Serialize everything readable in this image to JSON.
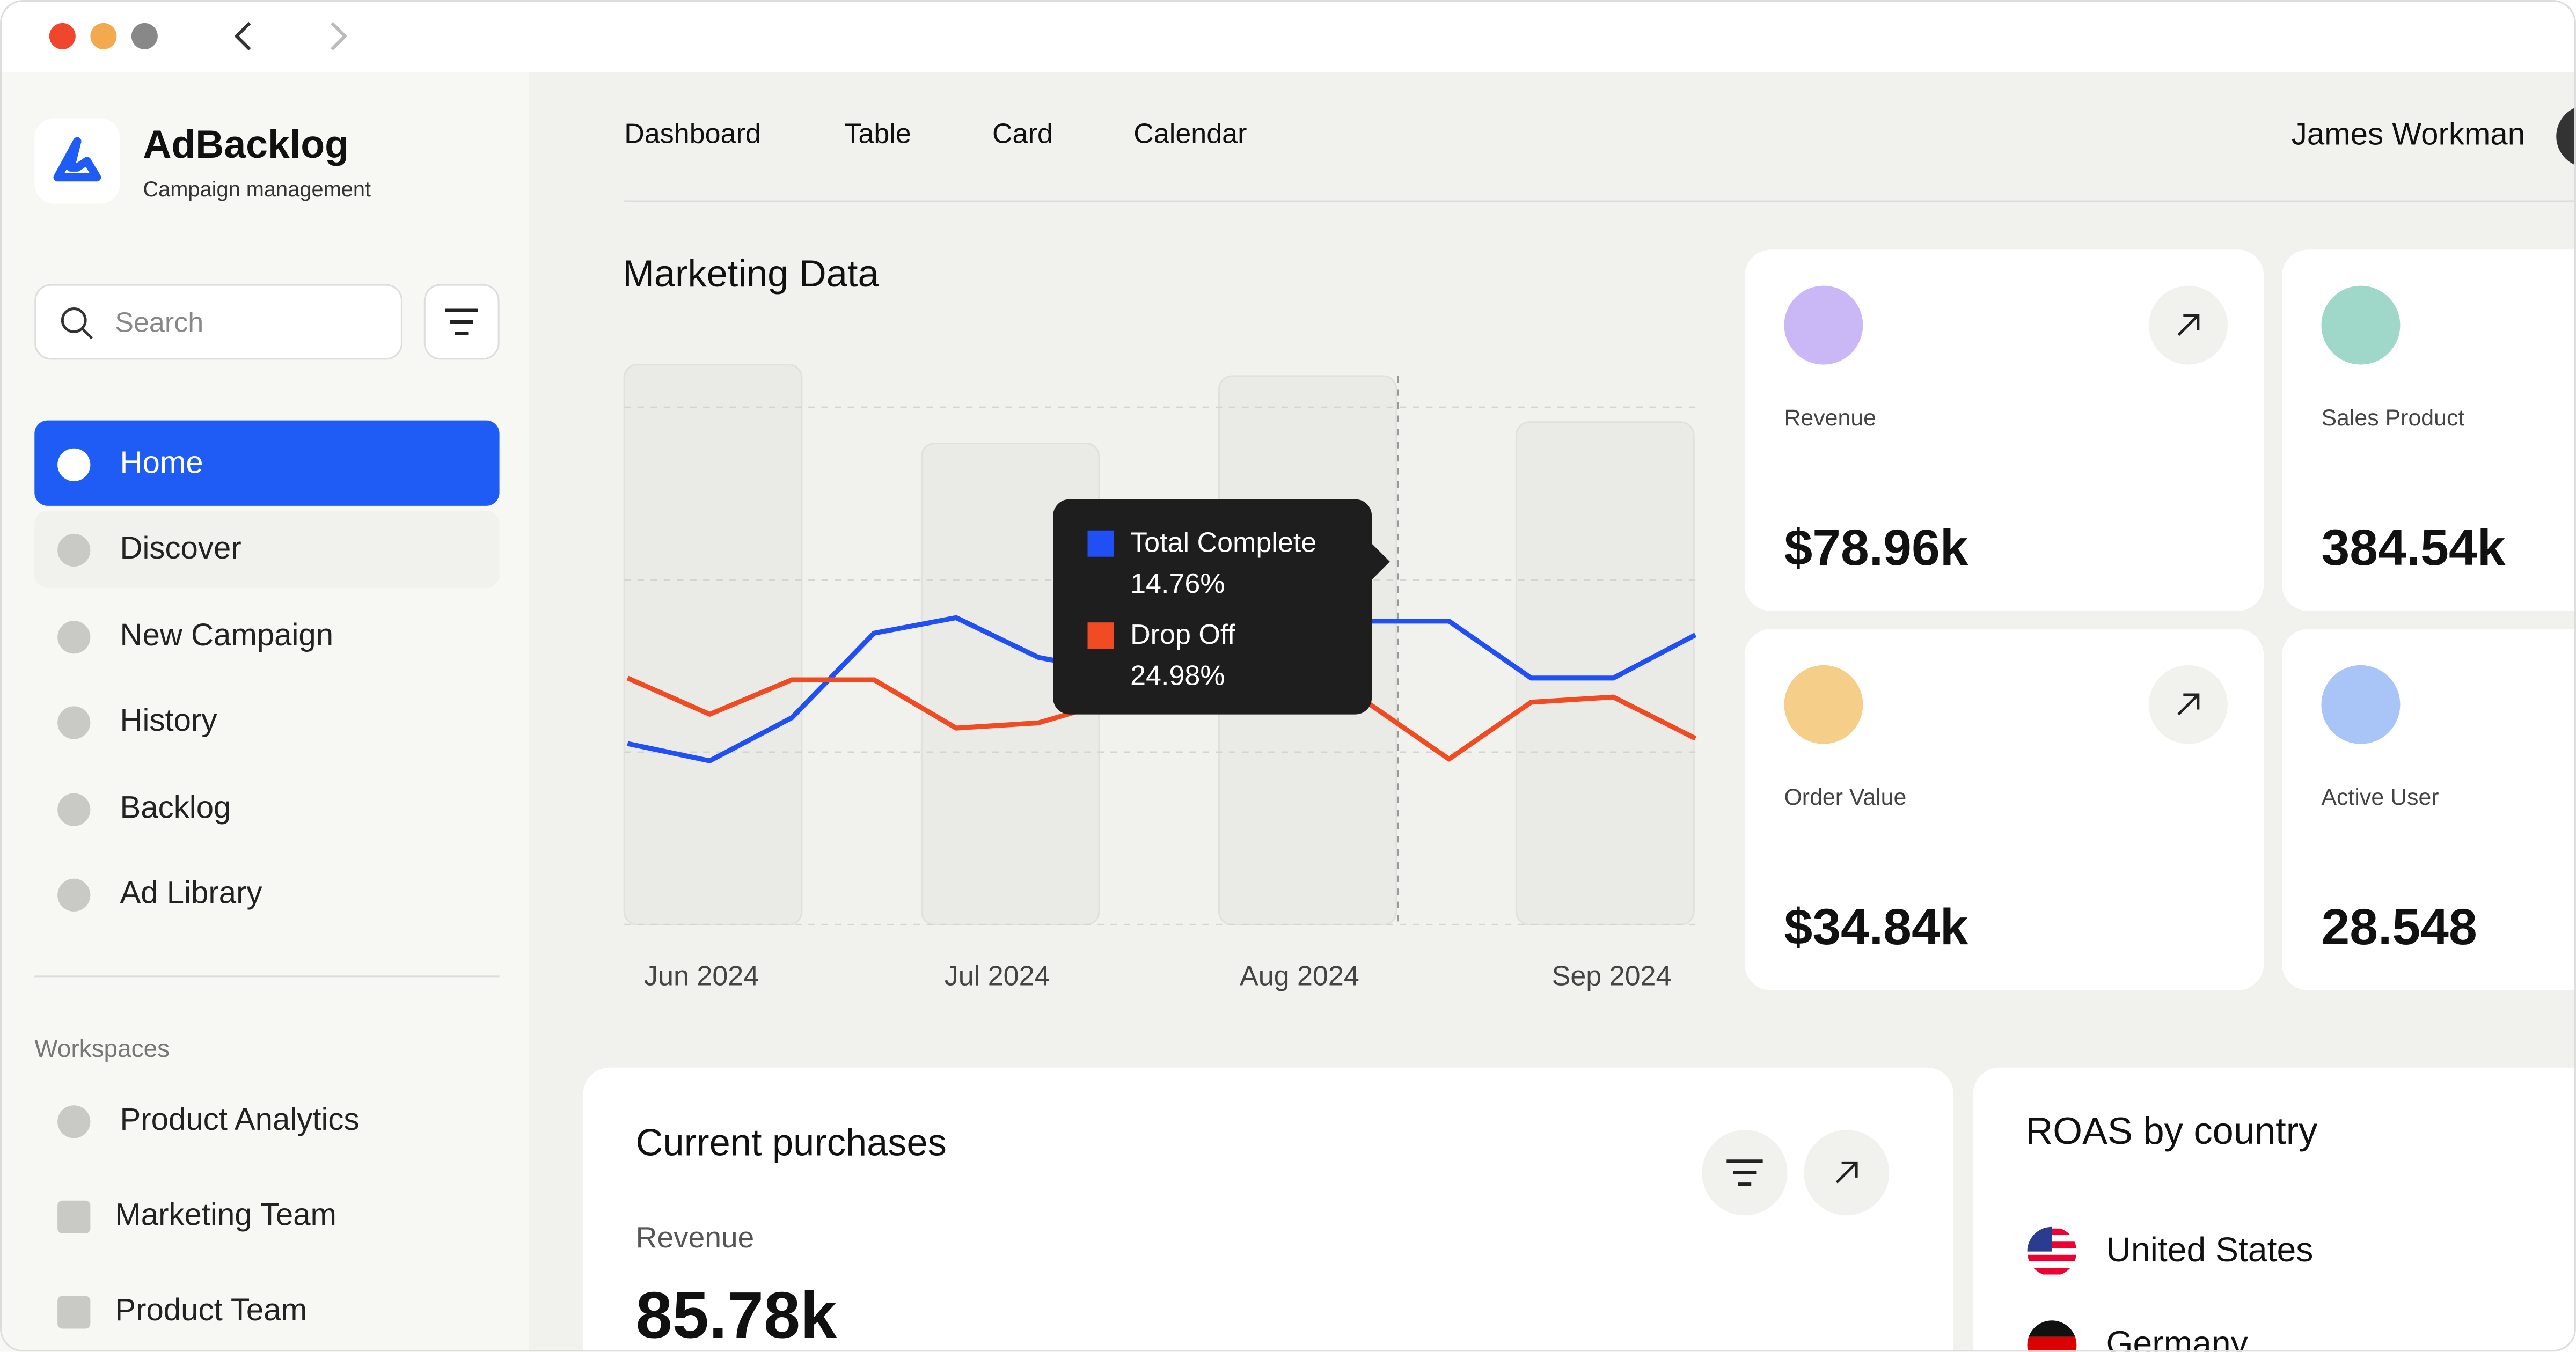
{
  "sidebar": {
    "brand": "AdBacklog",
    "tagline": "Campaign management",
    "search_placeholder": "Search",
    "nav": [
      "Home",
      "Discover",
      "New Campaign",
      "History",
      "Backlog",
      "Ad Library"
    ],
    "workspaces_title": "Workspaces",
    "workspaces": [
      "Product Analytics",
      "Marketing Team",
      "Product Team"
    ]
  },
  "topbar": {
    "tabs": [
      "Dashboard",
      "Table",
      "Card",
      "Calendar"
    ],
    "user": "James Workman"
  },
  "chart_data": {
    "type": "line",
    "title": "Marketing Data",
    "x_labels": [
      "Jun 2024",
      "Jul 2024",
      "Aug 2024",
      "Sep 2024"
    ],
    "ylim": [
      0,
      30
    ],
    "series": [
      {
        "name": "Total Complete",
        "color": "#1f4ff5",
        "values": [
          10.5,
          9.5,
          12.0,
          16.9,
          17.8,
          15.5,
          14.6,
          15.5,
          17.0,
          17.6,
          17.6,
          14.3,
          14.3,
          16.8
        ]
      },
      {
        "name": "Drop Off",
        "color": "#f04b23",
        "values": [
          14.3,
          12.2,
          14.2,
          14.2,
          11.4,
          11.7,
          13.1,
          13.6,
          13.6,
          12.9,
          9.6,
          12.9,
          13.2,
          10.8
        ]
      }
    ],
    "tooltip_values": [
      "14.76%",
      "24.98%"
    ]
  },
  "stats": [
    {
      "label": "Revenue",
      "value": "$78.96k"
    },
    {
      "label": "Sales Product",
      "value": "384.54k"
    },
    {
      "label": "Order Value",
      "value": "$34.84k"
    },
    {
      "label": "Active User",
      "value": "28.548"
    }
  ],
  "purchases": {
    "title": "Current purchases",
    "label": "Revenue",
    "value": "85.78k"
  },
  "roas": {
    "title": "ROAS by country",
    "countries": [
      "United States",
      "Germany"
    ]
  }
}
